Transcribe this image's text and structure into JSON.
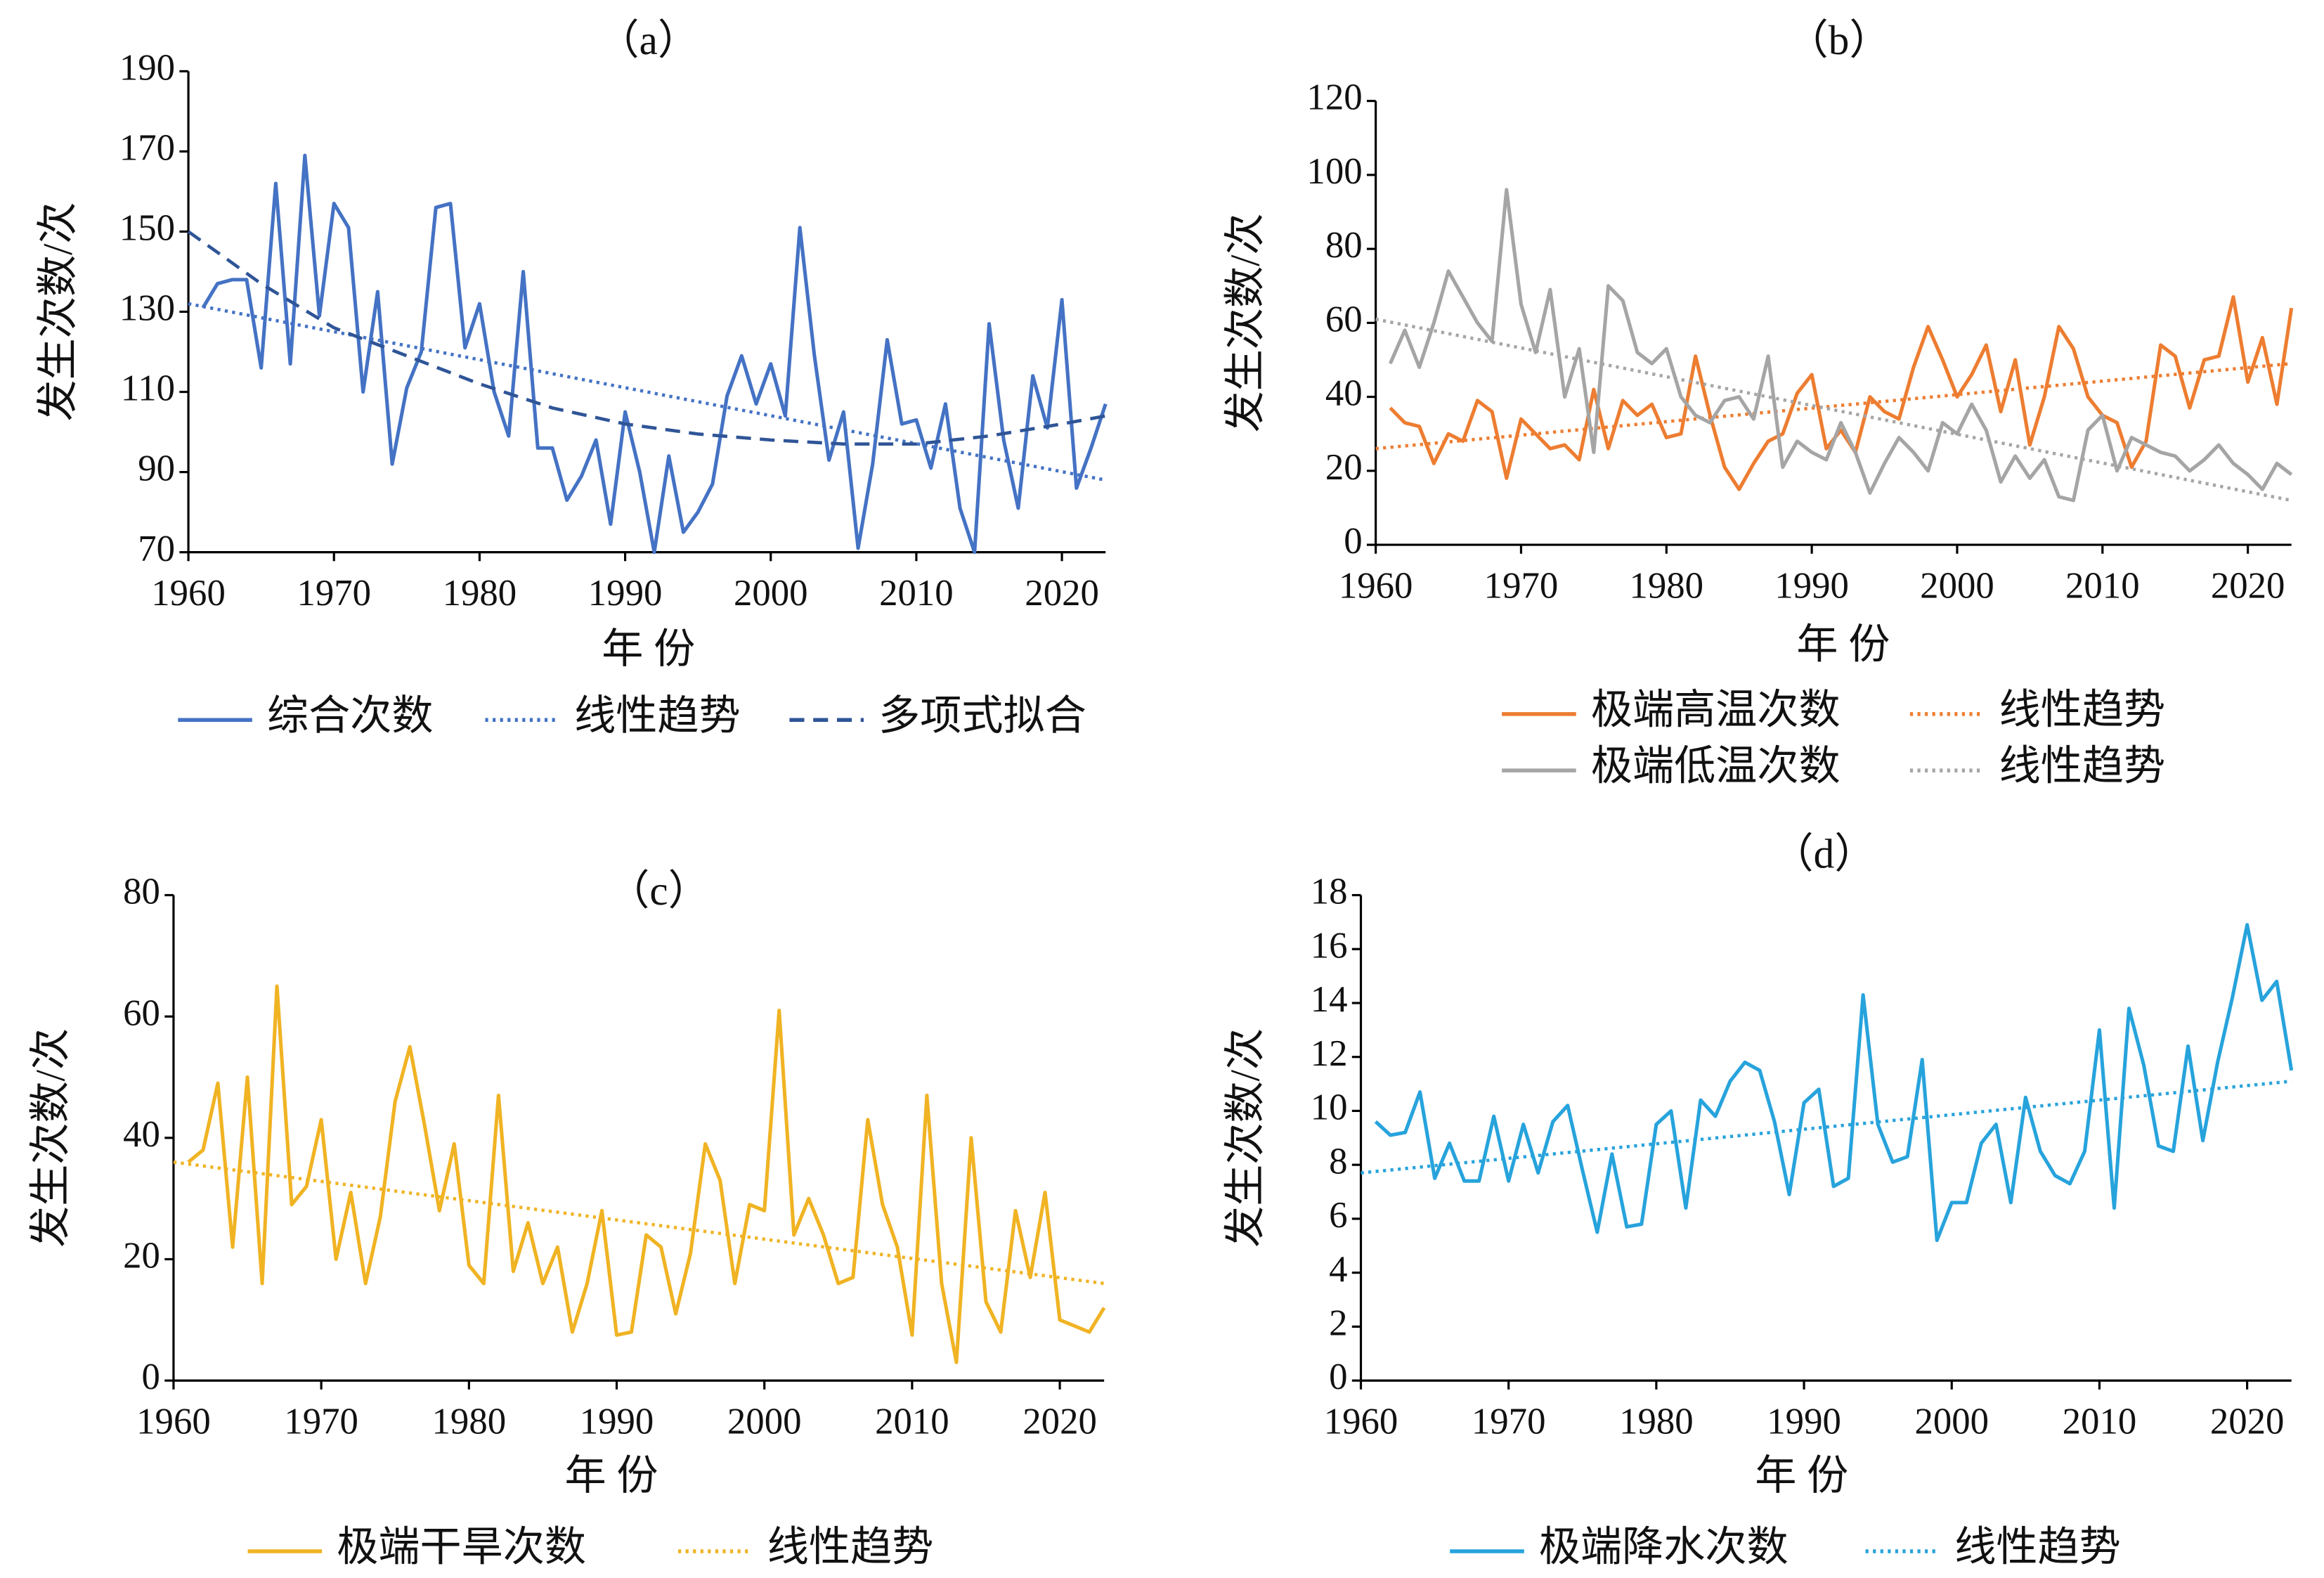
{
  "chart_data": [
    {
      "type": "line",
      "title": "（a）",
      "xlabel": "年 份",
      "ylabel": "发生次数/次",
      "x": [
        1961,
        1962,
        1963,
        1964,
        1965,
        1966,
        1967,
        1968,
        1969,
        1970,
        1971,
        1972,
        1973,
        1974,
        1975,
        1976,
        1977,
        1978,
        1979,
        1980,
        1981,
        1982,
        1983,
        1984,
        1985,
        1986,
        1987,
        1988,
        1989,
        1990,
        1991,
        1992,
        1993,
        1994,
        1995,
        1996,
        1997,
        1998,
        1999,
        2000,
        2001,
        2002,
        2003,
        2004,
        2005,
        2006,
        2007,
        2008,
        2009,
        2010,
        2011,
        2012,
        2013,
        2014,
        2015,
        2016,
        2017,
        2018,
        2019,
        2020,
        2021,
        2022,
        2023
      ],
      "xlim": [
        1960,
        2023
      ],
      "xticks": [
        1960,
        1970,
        1980,
        1990,
        2000,
        2010,
        2020
      ],
      "ylim": [
        70,
        190
      ],
      "yticks": [
        70,
        90,
        110,
        130,
        150,
        170,
        190
      ],
      "series": [
        {
          "name": "综合次数",
          "color": "#4472c4",
          "style": "solid",
          "values": [
            131,
            137,
            138,
            138,
            116,
            162,
            117,
            169,
            129,
            157,
            151,
            110,
            135,
            92,
            111,
            120,
            156,
            157,
            121,
            132,
            110,
            99,
            140,
            96,
            96,
            83,
            89,
            98,
            77,
            105,
            90,
            70,
            94,
            75,
            80,
            87,
            109,
            119,
            107,
            117,
            104,
            151,
            119,
            93,
            105,
            71,
            92,
            123,
            102,
            103,
            91,
            107,
            81,
            70,
            127,
            98,
            81,
            114,
            101,
            133,
            86,
            96,
            107
          ]
        },
        {
          "name": "线性趋势",
          "color": "#4472c4",
          "style": "dotted",
          "x": [
            1960,
            2023
          ],
          "values": [
            132,
            88
          ]
        },
        {
          "name": "多项式拟合",
          "color": "#2f5597",
          "style": "dashed",
          "x": [
            1960,
            1965,
            1970,
            1975,
            1980,
            1985,
            1990,
            1995,
            2000,
            2005,
            2010,
            2015,
            2020,
            2023
          ],
          "values": [
            150,
            137,
            126,
            119,
            112,
            106,
            102,
            99.5,
            98,
            97,
            97,
            99,
            102,
            104
          ]
        }
      ]
    },
    {
      "type": "line",
      "title": "（b）",
      "xlabel": "年 份",
      "ylabel": "发生次数/次",
      "x": [
        1961,
        1962,
        1963,
        1964,
        1965,
        1966,
        1967,
        1968,
        1969,
        1970,
        1971,
        1972,
        1973,
        1974,
        1975,
        1976,
        1977,
        1978,
        1979,
        1980,
        1981,
        1982,
        1983,
        1984,
        1985,
        1986,
        1987,
        1988,
        1989,
        1990,
        1991,
        1992,
        1993,
        1994,
        1995,
        1996,
        1997,
        1998,
        1999,
        2000,
        2001,
        2002,
        2003,
        2004,
        2005,
        2006,
        2007,
        2008,
        2009,
        2010,
        2011,
        2012,
        2013,
        2014,
        2015,
        2016,
        2017,
        2018,
        2019,
        2020,
        2021,
        2022,
        2023
      ],
      "xlim": [
        1960,
        2023
      ],
      "xticks": [
        1960,
        1970,
        1980,
        1990,
        2000,
        2010,
        2020
      ],
      "ylim": [
        0,
        120
      ],
      "yticks": [
        0,
        20,
        40,
        60,
        80,
        100,
        120
      ],
      "series": [
        {
          "name": "极端高温次数",
          "color": "#ed7d31",
          "style": "solid",
          "values": [
            37,
            33,
            32,
            22,
            30,
            28,
            39,
            36,
            18,
            34,
            30,
            26,
            27,
            23,
            42,
            26,
            39,
            35,
            38,
            29,
            30,
            51,
            35,
            21,
            15,
            22,
            28,
            30,
            41,
            46,
            26,
            31,
            25,
            40,
            36,
            34,
            48,
            59,
            50,
            40,
            46,
            54,
            36,
            50,
            27,
            40,
            59,
            53,
            40,
            35,
            33,
            21,
            28,
            54,
            51,
            37,
            50,
            51,
            67,
            44,
            56,
            38,
            64
          ]
        },
        {
          "name": "线性趋势",
          "color": "#ed7d31",
          "style": "dotted",
          "x": [
            1960,
            2023
          ],
          "values": [
            26,
            49
          ]
        },
        {
          "name": "极端低温次数",
          "color": "#a5a5a5",
          "style": "solid",
          "values": [
            49,
            58,
            48,
            60,
            74,
            67,
            60,
            55,
            96,
            65,
            52,
            69,
            40,
            53,
            25,
            70,
            66,
            52,
            49,
            53,
            40,
            35,
            33,
            39,
            40,
            34,
            51,
            21,
            28,
            25,
            23,
            33,
            25,
            14,
            22,
            29,
            25,
            20,
            33,
            30,
            38,
            31,
            17,
            24,
            18,
            23,
            13,
            12,
            31,
            35,
            20,
            29,
            27,
            25,
            24,
            20,
            23,
            27,
            22,
            19,
            15,
            22,
            19
          ]
        },
        {
          "name": "线性趋势",
          "color": "#a5a5a5",
          "style": "dotted",
          "x": [
            1960,
            2023
          ],
          "values": [
            61,
            12
          ]
        }
      ]
    },
    {
      "type": "line",
      "title": "（c）",
      "xlabel": "年 份",
      "ylabel": "发生次数/次",
      "x": [
        1961,
        1962,
        1963,
        1964,
        1965,
        1966,
        1967,
        1968,
        1969,
        1970,
        1971,
        1972,
        1973,
        1974,
        1975,
        1976,
        1977,
        1978,
        1979,
        1980,
        1981,
        1982,
        1983,
        1984,
        1985,
        1986,
        1987,
        1988,
        1989,
        1990,
        1991,
        1992,
        1993,
        1994,
        1995,
        1996,
        1997,
        1998,
        1999,
        2000,
        2001,
        2002,
        2003,
        2004,
        2005,
        2006,
        2007,
        2008,
        2009,
        2010,
        2011,
        2012,
        2013,
        2014,
        2015,
        2016,
        2017,
        2018,
        2019,
        2020,
        2021,
        2022,
        2023
      ],
      "xlim": [
        1960,
        2023
      ],
      "xticks": [
        1960,
        1970,
        1980,
        1990,
        2000,
        2010,
        2020
      ],
      "ylim": [
        0,
        80
      ],
      "yticks": [
        0,
        20,
        40,
        60,
        80
      ],
      "series": [
        {
          "name": "极端干旱次数",
          "color": "#f0b323",
          "style": "solid",
          "values": [
            36,
            38,
            49,
            22,
            50,
            16,
            65,
            29,
            32,
            43,
            20,
            31,
            16,
            27,
            46,
            55,
            42,
            28,
            39,
            19,
            16,
            47,
            18,
            26,
            16,
            22,
            8,
            16,
            28,
            7.5,
            8,
            24,
            22,
            11,
            21,
            39,
            33,
            16,
            29,
            28,
            61,
            24,
            30,
            24,
            16,
            17,
            43,
            29,
            22,
            7.5,
            47,
            16,
            3,
            40,
            13,
            8,
            28,
            17,
            31,
            10,
            9,
            8,
            12
          ]
        },
        {
          "name": "线性趋势",
          "color": "#f0b323",
          "style": "dotted",
          "x": [
            1960,
            2023
          ],
          "values": [
            36,
            16
          ]
        }
      ]
    },
    {
      "type": "line",
      "title": "（d）",
      "xlabel": "年 份",
      "ylabel": "发生次数/次",
      "x": [
        1961,
        1962,
        1963,
        1964,
        1965,
        1966,
        1967,
        1968,
        1969,
        1970,
        1971,
        1972,
        1973,
        1974,
        1975,
        1976,
        1977,
        1978,
        1979,
        1980,
        1981,
        1982,
        1983,
        1984,
        1985,
        1986,
        1987,
        1988,
        1989,
        1990,
        1991,
        1992,
        1993,
        1994,
        1995,
        1996,
        1997,
        1998,
        1999,
        2000,
        2001,
        2002,
        2003,
        2004,
        2005,
        2006,
        2007,
        2008,
        2009,
        2010,
        2011,
        2012,
        2013,
        2014,
        2015,
        2016,
        2017,
        2018,
        2019,
        2020,
        2021,
        2022,
        2023
      ],
      "xlim": [
        1960,
        2023
      ],
      "xticks": [
        1960,
        1970,
        1980,
        1990,
        2000,
        2010,
        2020
      ],
      "ylim": [
        0,
        18
      ],
      "yticks": [
        0,
        2,
        4,
        6,
        8,
        10,
        12,
        14,
        16,
        18
      ],
      "series": [
        {
          "name": "极端降水次数",
          "color": "#27a3dc",
          "style": "solid",
          "values": [
            9.6,
            9.1,
            9.2,
            10.7,
            7.5,
            8.8,
            7.4,
            7.4,
            9.8,
            7.4,
            9.5,
            7.7,
            9.6,
            10.2,
            7.8,
            5.5,
            8.4,
            5.7,
            5.8,
            9.5,
            10,
            6.4,
            10.4,
            9.8,
            11.1,
            11.8,
            11.5,
            9.6,
            6.9,
            10.3,
            10.8,
            7.2,
            7.5,
            14.3,
            9.5,
            8.1,
            8.3,
            11.9,
            5.2,
            6.6,
            6.6,
            8.8,
            9.5,
            6.6,
            10.5,
            8.5,
            7.6,
            7.3,
            8.5,
            13,
            6.4,
            13.8,
            11.7,
            8.7,
            8.5,
            12.4,
            8.9,
            11.8,
            14.2,
            16.9,
            14.1,
            14.8,
            11.5
          ]
        },
        {
          "name": "线性趋势",
          "color": "#27a3dc",
          "style": "dotted",
          "x": [
            1960,
            2023
          ],
          "values": [
            7.7,
            11.1
          ]
        }
      ]
    }
  ]
}
